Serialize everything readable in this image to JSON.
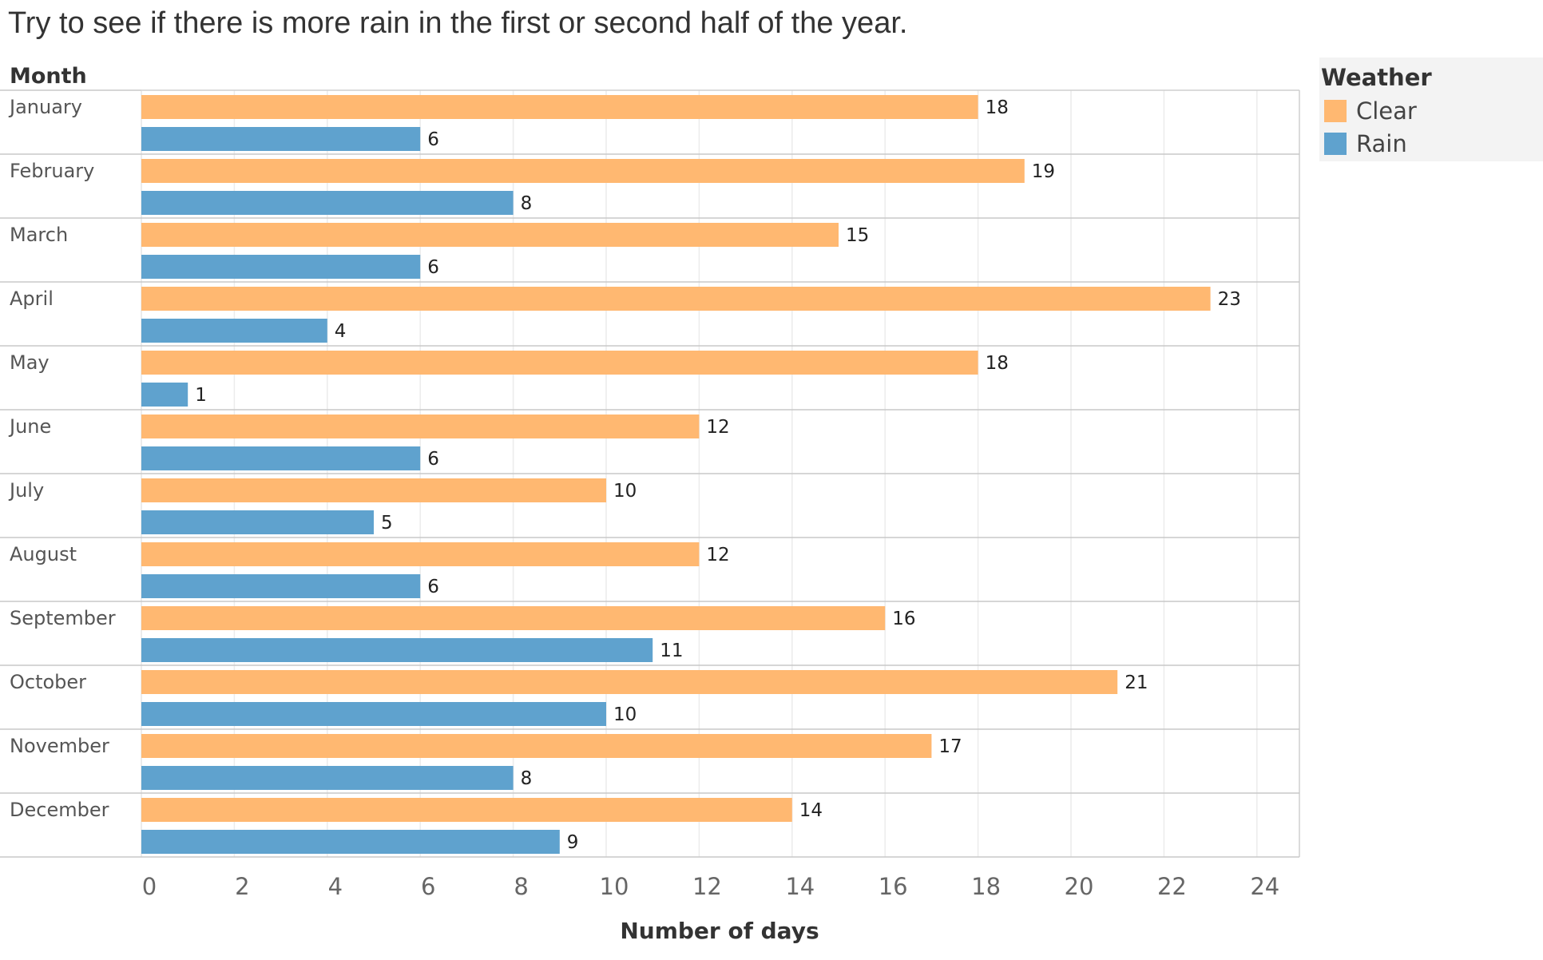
{
  "title": "Try to see if there is more rain in the first or second half of the year.",
  "chart_data": {
    "type": "bar",
    "orientation": "horizontal",
    "title": "Try to see if there is more rain in the first or second half of the year.",
    "row_header": "Month",
    "xlabel": "Number of days",
    "ylabel": "",
    "xlim": [
      0,
      25
    ],
    "xticks": [
      "0",
      "2",
      "4",
      "6",
      "8",
      "10",
      "12",
      "14",
      "16",
      "18",
      "20",
      "22",
      "24"
    ],
    "grid": true,
    "legend_position": "top-right",
    "legend_title": "Weather",
    "categories": [
      "January",
      "February",
      "March",
      "April",
      "May",
      "June",
      "July",
      "August",
      "September",
      "October",
      "November",
      "December"
    ],
    "series": [
      {
        "name": "Clear",
        "color": "#ffb871",
        "values": [
          18,
          19,
          15,
          23,
          18,
          12,
          10,
          12,
          16,
          21,
          17,
          14
        ]
      },
      {
        "name": "Rain",
        "color": "#5fa2ce",
        "values": [
          6,
          8,
          6,
          4,
          1,
          6,
          5,
          6,
          11,
          10,
          8,
          9
        ]
      }
    ]
  }
}
